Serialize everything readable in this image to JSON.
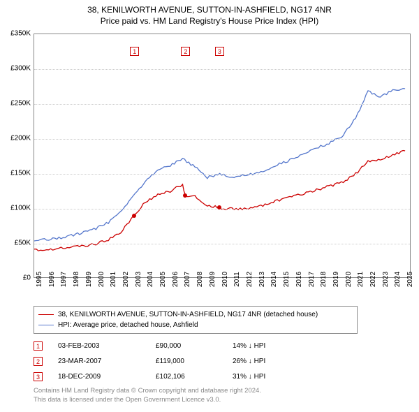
{
  "title_line1": "38, KENILWORTH AVENUE, SUTTON-IN-ASHFIELD, NG17 4NR",
  "title_line2": "Price paid vs. HM Land Registry's House Price Index (HPI)",
  "chart": {
    "type": "line",
    "background_color": "#ffffff",
    "grid_color": "#cccccc",
    "border_color": "#888888",
    "ylim": [
      0,
      350000
    ],
    "yticks": [
      0,
      50000,
      100000,
      150000,
      200000,
      250000,
      300000,
      350000
    ],
    "ytick_labels": [
      "£0",
      "£50K",
      "£100K",
      "£150K",
      "£200K",
      "£250K",
      "£300K",
      "£350K"
    ],
    "xlim": [
      1995,
      2025.5
    ],
    "xticks": [
      1995,
      1996,
      1997,
      1998,
      1999,
      2000,
      2001,
      2002,
      2003,
      2004,
      2005,
      2006,
      2007,
      2008,
      2009,
      2010,
      2011,
      2012,
      2013,
      2014,
      2015,
      2016,
      2017,
      2018,
      2019,
      2020,
      2021,
      2022,
      2023,
      2024,
      2025
    ],
    "series": [
      {
        "name": "property",
        "color": "#cc0000",
        "line_width": 1.3,
        "x": [
          1995,
          1996,
          1997,
          1998,
          1999,
          2000,
          2001,
          2002,
          2003,
          2003.09,
          2004,
          2005,
          2006,
          2007,
          2007.22,
          2008,
          2009,
          2009.96,
          2010,
          2011,
          2012,
          2013,
          2014,
          2015,
          2016,
          2017,
          2018,
          2019,
          2020,
          2021,
          2022,
          2023,
          2024,
          2025
        ],
        "y": [
          41000,
          42000,
          43000,
          45000,
          47000,
          50000,
          56000,
          67000,
          88000,
          90000,
          110000,
          120000,
          125000,
          135000,
          119000,
          118000,
          105000,
          102106,
          100000,
          100000,
          100000,
          102000,
          108000,
          113000,
          118000,
          123000,
          128000,
          133000,
          138000,
          150000,
          168000,
          170000,
          178000,
          183000
        ]
      },
      {
        "name": "hpi",
        "color": "#5577cc",
        "line_width": 1.3,
        "x": [
          1995,
          1996,
          1997,
          1998,
          1999,
          2000,
          2001,
          2002,
          2003,
          2004,
          2005,
          2006,
          2007,
          2008,
          2009,
          2010,
          2011,
          2012,
          2013,
          2014,
          2015,
          2016,
          2017,
          2018,
          2019,
          2020,
          2021,
          2022,
          2023,
          2024,
          2025
        ],
        "y": [
          55000,
          56000,
          58000,
          62000,
          66000,
          72000,
          80000,
          95000,
          118000,
          140000,
          155000,
          162000,
          172000,
          160000,
          145000,
          150000,
          145000,
          148000,
          150000,
          158000,
          165000,
          172000,
          180000,
          188000,
          195000,
          205000,
          230000,
          268000,
          260000,
          270000,
          272000
        ]
      }
    ],
    "markers": [
      {
        "n": "1",
        "year": 2003.09,
        "price": 90000
      },
      {
        "n": "2",
        "year": 2007.22,
        "price": 119000
      },
      {
        "n": "3",
        "year": 2009.96,
        "price": 102106
      }
    ]
  },
  "legend": {
    "items": [
      {
        "color": "#cc0000",
        "label": "38, KENILWORTH AVENUE, SUTTON-IN-ASHFIELD, NG17 4NR (detached house)"
      },
      {
        "color": "#5577cc",
        "label": "HPI: Average price, detached house, Ashfield"
      }
    ]
  },
  "points_table": [
    {
      "n": "1",
      "date": "03-FEB-2003",
      "price": "£90,000",
      "delta": "14% ↓ HPI"
    },
    {
      "n": "2",
      "date": "23-MAR-2007",
      "price": "£119,000",
      "delta": "26% ↓ HPI"
    },
    {
      "n": "3",
      "date": "18-DEC-2009",
      "price": "£102,106",
      "delta": "31% ↓ HPI"
    }
  ],
  "footer_line1": "Contains HM Land Registry data © Crown copyright and database right 2024.",
  "footer_line2": "This data is licensed under the Open Government Licence v3.0."
}
